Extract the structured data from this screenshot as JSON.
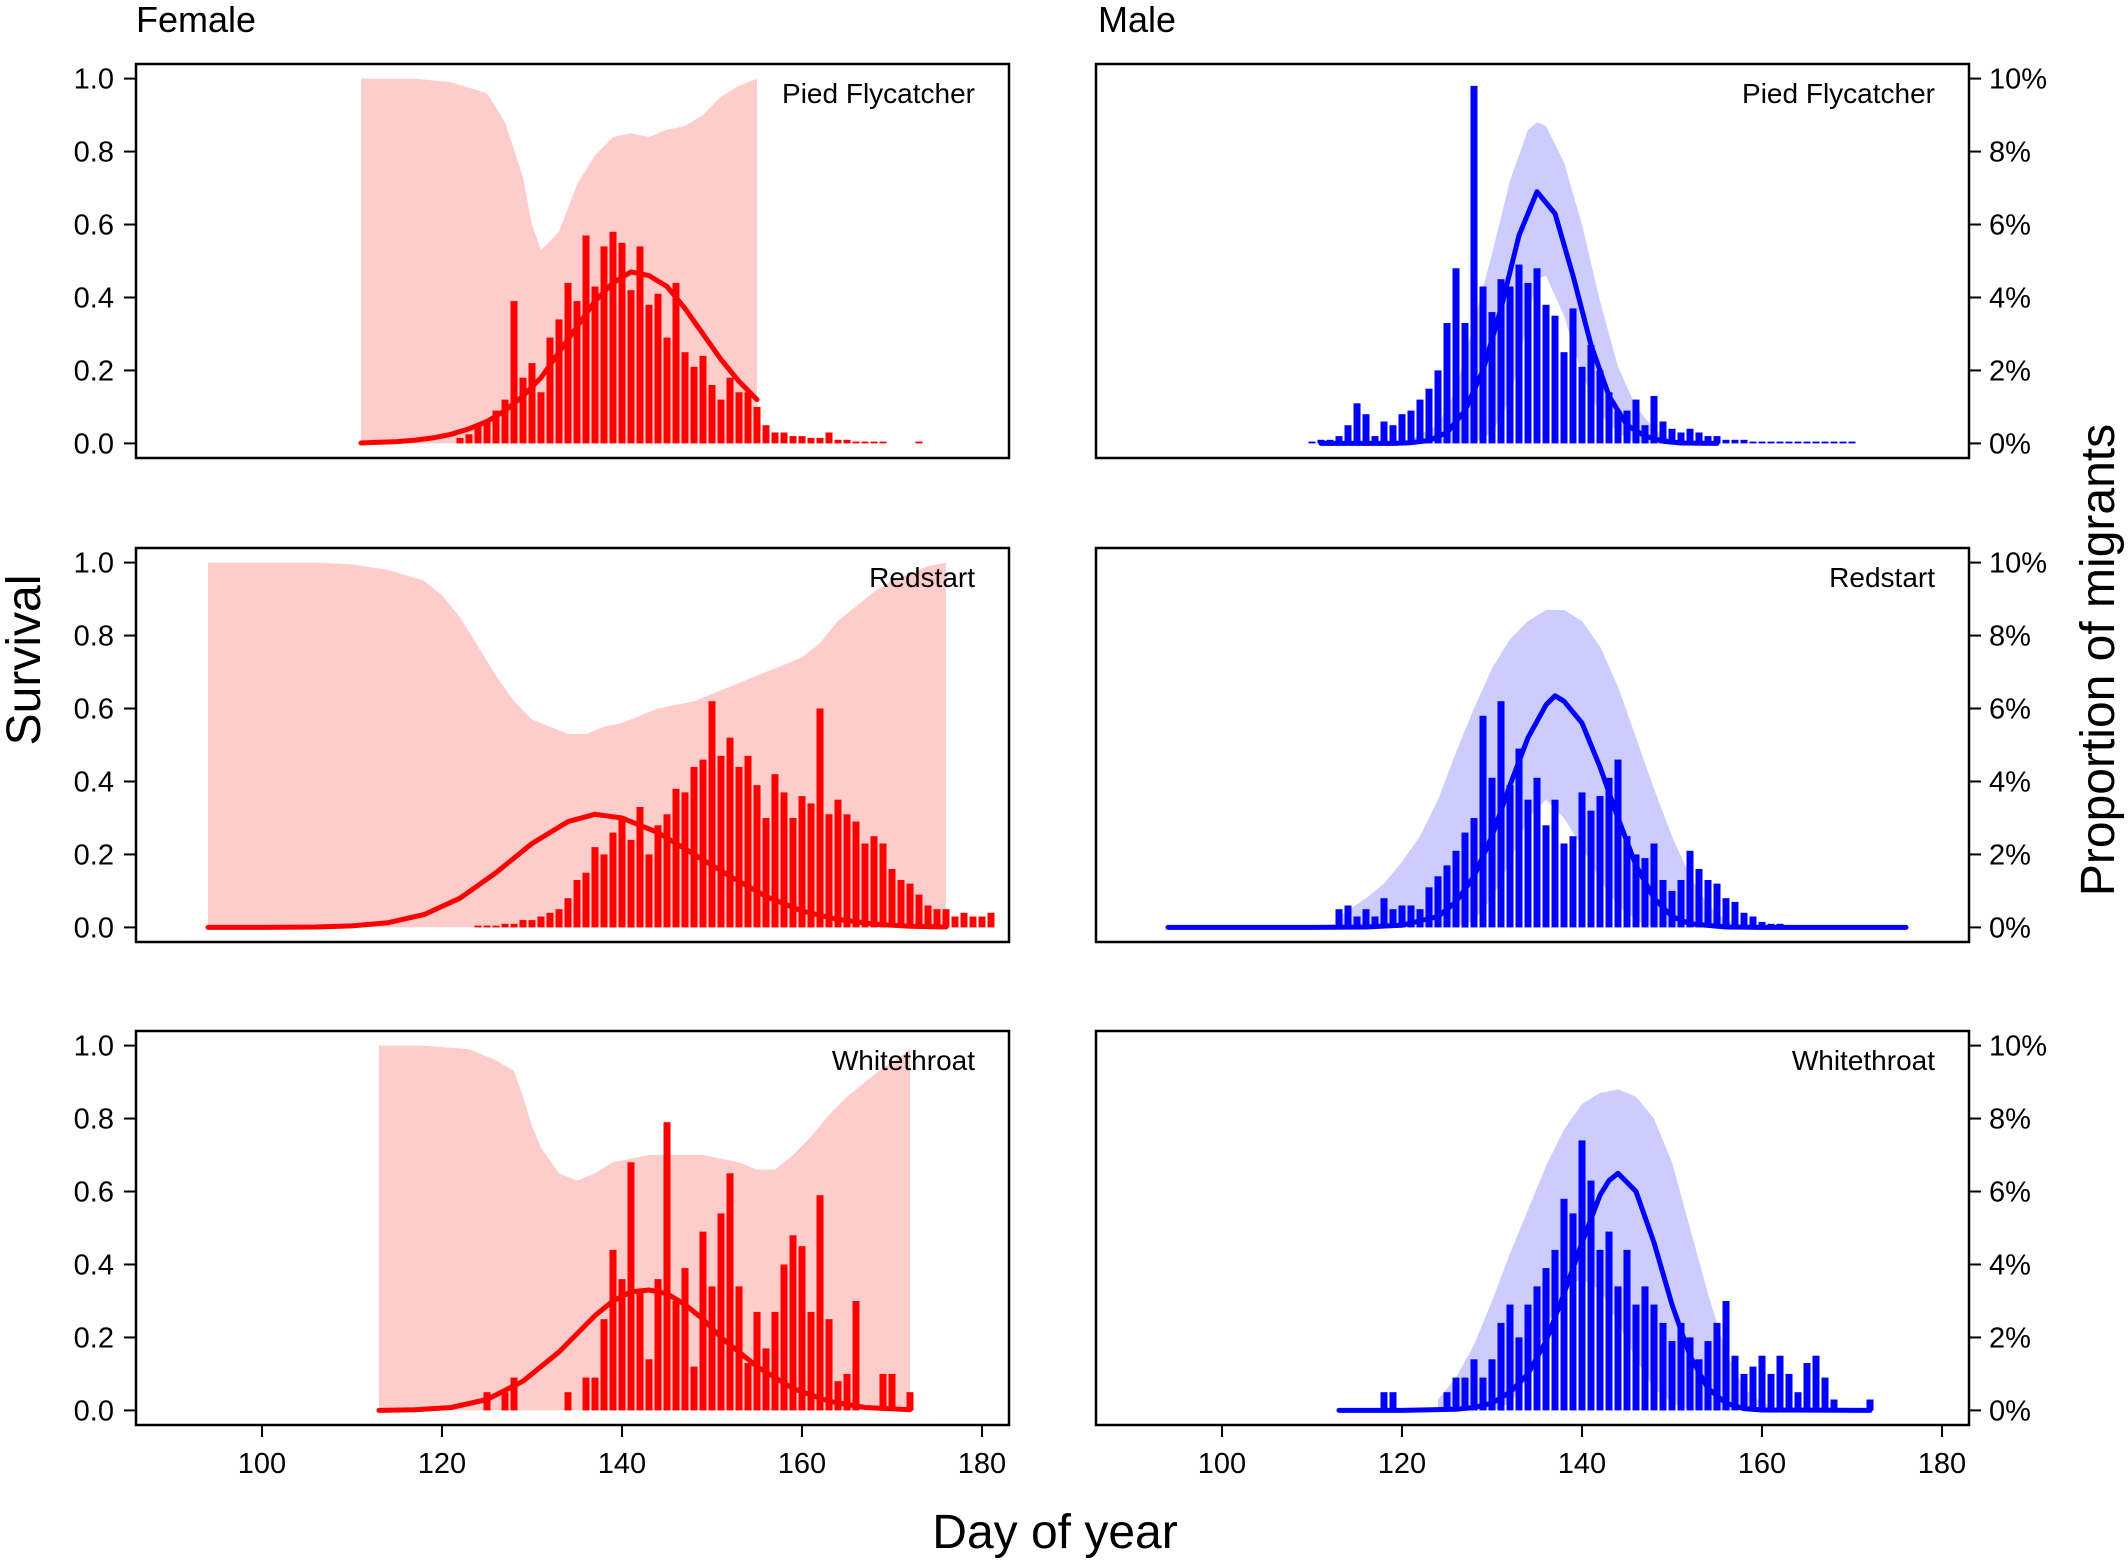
{
  "column_titles": {
    "female": "Female",
    "male": "Male"
  },
  "axis_titles": {
    "left": "Survival",
    "right": "Proportion of migrants",
    "bottom": "Day of year"
  },
  "left_ticks": [
    "0.0",
    "0.2",
    "0.4",
    "0.6",
    "0.8",
    "1.0"
  ],
  "right_ticks": [
    "0%",
    "2%",
    "4%",
    "6%",
    "8%",
    "10%"
  ],
  "x_ticks": [
    "100",
    "120",
    "140",
    "160",
    "180"
  ],
  "colors": {
    "female_line": "#ff0000",
    "female_bar": "#ff0000",
    "female_band": "#ffcccc",
    "male_line": "#0000ff",
    "male_bar": "#0000ff",
    "male_band": "#ccccff"
  },
  "chart_data": [
    {
      "type": "bar",
      "sex": "Female",
      "species": "Pied Flycatcher",
      "xlim": [
        86,
        183
      ],
      "ylim": [
        -0.04,
        1.04
      ],
      "y2lim": [
        -0.4,
        10.4
      ],
      "y2_unit": "%",
      "bars": {
        "start": 112,
        "values": [
          0,
          0,
          0,
          0,
          0,
          0,
          0,
          0,
          0,
          0,
          0.15,
          0.25,
          0.5,
          0.6,
          0.9,
          1.2,
          3.9,
          1.8,
          2.2,
          1.4,
          2.9,
          3.4,
          4.4,
          3.9,
          5.7,
          4.3,
          5.4,
          5.8,
          5.5,
          4.2,
          5.4,
          3.8,
          4.1,
          2.9,
          4.4,
          2.5,
          2.1,
          2.4,
          1.6,
          1.2,
          1.8,
          1.4,
          1.4,
          1.0,
          0.5,
          0.3,
          0.3,
          0.2,
          0.2,
          0.15,
          0.15,
          0.3,
          0.1,
          0.1,
          0.05,
          0.05,
          0.05,
          0.05,
          0,
          0,
          0,
          0.05
        ]
      },
      "fitted_curve": {
        "x": [
          111,
          113,
          115,
          117,
          119,
          121,
          123,
          125,
          127,
          129,
          131,
          133,
          135,
          137,
          139,
          141,
          143,
          145,
          147,
          149,
          151,
          153,
          155
        ],
        "y": [
          0.001,
          0.003,
          0.005,
          0.009,
          0.015,
          0.025,
          0.04,
          0.06,
          0.09,
          0.13,
          0.18,
          0.25,
          0.32,
          0.39,
          0.44,
          0.47,
          0.46,
          0.43,
          0.37,
          0.3,
          0.23,
          0.17,
          0.12
        ]
      },
      "band": {
        "x": [
          111,
          117,
          121,
          125,
          127,
          129,
          130,
          131,
          133,
          135,
          137,
          139,
          141,
          143,
          145,
          147,
          149,
          151,
          153,
          155
        ],
        "upper": [
          1.0,
          1.0,
          0.99,
          0.96,
          0.88,
          0.73,
          0.6,
          0.53,
          0.58,
          0.71,
          0.79,
          0.84,
          0.85,
          0.84,
          0.86,
          0.87,
          0.9,
          0.95,
          0.98,
          1.0
        ],
        "lower": [
          0,
          0,
          0,
          0,
          0,
          0,
          0,
          0,
          0,
          0,
          0,
          0,
          0,
          0,
          0,
          0,
          0,
          0,
          0,
          0
        ]
      }
    },
    {
      "type": "bar",
      "sex": "Male",
      "species": "Pied Flycatcher",
      "xlim": [
        86,
        183
      ],
      "ylim": [
        -0.04,
        1.04
      ],
      "y2lim": [
        -0.4,
        10.4
      ],
      "y2_unit": "%",
      "bars": {
        "start": 110,
        "values": [
          0.05,
          0.1,
          0.1,
          0.2,
          0.5,
          1.1,
          0.8,
          0.2,
          0.6,
          0.5,
          0.8,
          0.9,
          1.2,
          1.5,
          2.0,
          3.3,
          4.8,
          3.3,
          9.8,
          4.3,
          3.6,
          4.5,
          4.3,
          4.9,
          4.4,
          4.8,
          3.8,
          3.5,
          2.5,
          3.7,
          2.1,
          2.7,
          2.0,
          1.4,
          0.9,
          0.9,
          1.2,
          0.5,
          1.3,
          0.6,
          0.4,
          0.3,
          0.4,
          0.3,
          0.2,
          0.2,
          0.1,
          0.1,
          0.1,
          0.05,
          0.05,
          0.05,
          0.05,
          0.05,
          0.05,
          0.05,
          0.05,
          0.05,
          0.05,
          0.05,
          0.05
        ]
      },
      "fitted_curve": {
        "x": [
          111,
          115,
          119,
          121,
          123,
          125,
          127,
          129,
          131,
          133,
          135,
          137,
          139,
          141,
          143,
          145,
          147,
          149,
          151,
          155
        ],
        "y": [
          0,
          0,
          0,
          0.002,
          0.008,
          0.03,
          0.09,
          0.2,
          0.37,
          0.57,
          0.69,
          0.63,
          0.46,
          0.27,
          0.13,
          0.05,
          0.02,
          0.006,
          0.001,
          0
        ]
      },
      "band": {
        "x": [
          120,
          124,
          126,
          128,
          130,
          132,
          134,
          135,
          136,
          138,
          140,
          142,
          144,
          146,
          148,
          150,
          152
        ],
        "upper": [
          0,
          0.05,
          0.15,
          0.33,
          0.52,
          0.72,
          0.86,
          0.88,
          0.87,
          0.77,
          0.6,
          0.39,
          0.21,
          0.1,
          0.04,
          0.01,
          0
        ],
        "lower": [
          0,
          0,
          0,
          0,
          0.03,
          0.12,
          0.34,
          0.45,
          0.46,
          0.35,
          0.19,
          0.08,
          0.03,
          0,
          0,
          0,
          0
        ]
      }
    },
    {
      "type": "bar",
      "sex": "Female",
      "species": "Redstart",
      "xlim": [
        86,
        183
      ],
      "ylim": [
        -0.04,
        1.04
      ],
      "y2lim": [
        -0.4,
        10.4
      ],
      "y2_unit": "%",
      "bars": {
        "start": 114,
        "values": [
          0,
          0,
          0,
          0,
          0,
          0,
          0,
          0,
          0,
          0,
          0.05,
          0.05,
          0.05,
          0.1,
          0.1,
          0.2,
          0.2,
          0.3,
          0.4,
          0.5,
          0.8,
          1.3,
          1.5,
          2.2,
          2.0,
          2.6,
          3.0,
          2.4,
          3.3,
          2.0,
          2.8,
          3.1,
          3.8,
          3.7,
          4.4,
          4.6,
          6.2,
          4.7,
          5.2,
          4.4,
          4.7,
          3.9,
          3.0,
          4.2,
          3.7,
          3.0,
          3.6,
          3.4,
          6.0,
          3.1,
          3.5,
          3.1,
          2.9,
          2.3,
          2.5,
          2.3,
          1.6,
          1.3,
          1.2,
          0.9,
          0.6,
          0.5,
          0.5,
          0.3,
          0.4,
          0.3,
          0.3,
          0.4
        ]
      },
      "fitted_curve": {
        "x": [
          94,
          100,
          106,
          110,
          114,
          118,
          122,
          126,
          130,
          134,
          137,
          140,
          144,
          148,
          152,
          156,
          160,
          164,
          168,
          172,
          176
        ],
        "y": [
          0,
          0,
          0.001,
          0.004,
          0.013,
          0.035,
          0.08,
          0.15,
          0.23,
          0.29,
          0.31,
          0.3,
          0.26,
          0.2,
          0.14,
          0.085,
          0.045,
          0.022,
          0.009,
          0.003,
          0.001
        ]
      },
      "band": {
        "x": [
          94,
          100,
          106,
          110,
          114,
          118,
          120,
          122,
          124,
          126,
          128,
          130,
          132,
          134,
          136,
          138,
          140,
          142,
          144,
          146,
          148,
          150,
          152,
          154,
          156,
          158,
          160,
          162,
          164,
          166,
          168,
          170,
          172,
          174,
          176
        ],
        "upper": [
          1.0,
          1.0,
          1.0,
          0.995,
          0.98,
          0.95,
          0.91,
          0.85,
          0.77,
          0.69,
          0.62,
          0.57,
          0.55,
          0.53,
          0.53,
          0.55,
          0.56,
          0.58,
          0.6,
          0.61,
          0.62,
          0.64,
          0.66,
          0.68,
          0.7,
          0.72,
          0.74,
          0.78,
          0.84,
          0.88,
          0.92,
          0.95,
          0.97,
          0.99,
          1.0
        ],
        "lower": [
          0,
          0,
          0,
          0,
          0,
          0,
          0,
          0,
          0,
          0,
          0,
          0,
          0,
          0,
          0,
          0,
          0,
          0,
          0,
          0,
          0,
          0,
          0,
          0,
          0,
          0,
          0,
          0,
          0,
          0,
          0,
          0,
          0,
          0,
          0
        ]
      }
    },
    {
      "type": "bar",
      "sex": "Male",
      "species": "Redstart",
      "xlim": [
        86,
        183
      ],
      "ylim": [
        -0.04,
        1.04
      ],
      "y2lim": [
        -0.4,
        10.4
      ],
      "y2_unit": "%",
      "bars": {
        "start": 113,
        "values": [
          0.5,
          0.6,
          0.3,
          0.5,
          0.3,
          0.8,
          0.5,
          0.6,
          0.6,
          0.5,
          1.1,
          1.4,
          1.7,
          2.1,
          2.6,
          3.0,
          5.8,
          4.1,
          6.2,
          3.9,
          4.9,
          3.5,
          4.1,
          2.8,
          3.5,
          2.3,
          2.5,
          3.7,
          3.2,
          3.6,
          4.1,
          4.6,
          2.5,
          2.0,
          1.9,
          2.3,
          1.3,
          1.0,
          1.3,
          2.1,
          1.6,
          1.3,
          1.2,
          0.8,
          0.7,
          0.4,
          0.3,
          0.15,
          0.1,
          0.1,
          0.05,
          0.05,
          0.05,
          0.05,
          0.05,
          0.05
        ]
      },
      "fitted_curve": {
        "x": [
          94,
          110,
          116,
          120,
          124,
          126,
          128,
          130,
          132,
          134,
          136,
          137,
          138,
          140,
          142,
          144,
          146,
          148,
          150,
          152,
          156,
          160,
          176
        ],
        "y": [
          0,
          0,
          0.001,
          0.006,
          0.03,
          0.07,
          0.14,
          0.25,
          0.39,
          0.52,
          0.61,
          0.635,
          0.62,
          0.56,
          0.44,
          0.3,
          0.17,
          0.08,
          0.03,
          0.01,
          0.001,
          0,
          0
        ]
      },
      "band": {
        "x": [
          113,
          116,
          118,
          120,
          122,
          124,
          126,
          128,
          130,
          132,
          134,
          136,
          138,
          140,
          142,
          144,
          146,
          148,
          150,
          152,
          154,
          156,
          158,
          160
        ],
        "upper": [
          0.03,
          0.08,
          0.12,
          0.18,
          0.25,
          0.35,
          0.48,
          0.6,
          0.71,
          0.79,
          0.84,
          0.87,
          0.87,
          0.84,
          0.77,
          0.66,
          0.52,
          0.38,
          0.25,
          0.14,
          0.06,
          0.02,
          0.005,
          0
        ],
        "lower": [
          0,
          0,
          0,
          0,
          0,
          0,
          0,
          0.02,
          0.08,
          0.18,
          0.3,
          0.35,
          0.3,
          0.22,
          0.13,
          0.06,
          0.02,
          0,
          0,
          0,
          0,
          0,
          0,
          0
        ]
      }
    },
    {
      "type": "bar",
      "sex": "Female",
      "species": "Whitethroat",
      "xlim": [
        86,
        183
      ],
      "ylim": [
        -0.04,
        1.04
      ],
      "y2lim": [
        -0.4,
        10.4
      ],
      "y2_unit": "%",
      "bars": {
        "start": 113,
        "values": [
          0,
          0,
          0,
          0,
          0,
          0,
          0,
          0,
          0,
          0,
          0,
          0,
          0.5,
          0,
          0.5,
          0.9,
          0,
          0,
          0,
          0,
          0,
          0.5,
          0,
          0.9,
          0.9,
          2.5,
          4.4,
          3.6,
          6.8,
          3.3,
          1.4,
          3.6,
          7.9,
          3.0,
          3.9,
          1.2,
          4.9,
          3.4,
          5.4,
          6.5,
          3.4,
          1.3,
          2.7,
          1.7,
          2.7,
          4.0,
          4.8,
          4.5,
          2.7,
          5.9,
          2.5,
          0.8,
          1.0,
          3.0,
          0,
          0,
          1.0,
          1.0,
          0,
          0.5
        ]
      },
      "fitted_curve": {
        "x": [
          113,
          117,
          121,
          125,
          129,
          133,
          135,
          137,
          139,
          141,
          143,
          145,
          147,
          149,
          151,
          155,
          159,
          163,
          167,
          172
        ],
        "y": [
          0,
          0.002,
          0.008,
          0.03,
          0.08,
          0.16,
          0.21,
          0.26,
          0.3,
          0.325,
          0.33,
          0.32,
          0.29,
          0.25,
          0.2,
          0.12,
          0.06,
          0.025,
          0.008,
          0.002
        ]
      },
      "band": {
        "x": [
          113,
          118,
          123,
          126,
          128,
          129,
          130,
          131,
          133,
          135,
          137,
          139,
          141,
          143,
          145,
          147,
          149,
          151,
          153,
          155,
          157,
          159,
          161,
          163,
          165,
          167,
          169,
          171,
          172
        ],
        "upper": [
          1.0,
          1.0,
          0.99,
          0.96,
          0.93,
          0.86,
          0.78,
          0.72,
          0.65,
          0.63,
          0.65,
          0.68,
          0.69,
          0.7,
          0.7,
          0.7,
          0.7,
          0.69,
          0.68,
          0.66,
          0.66,
          0.7,
          0.75,
          0.81,
          0.86,
          0.9,
          0.94,
          0.97,
          0.99
        ],
        "lower": [
          0,
          0,
          0,
          0,
          0,
          0,
          0,
          0,
          0,
          0,
          0,
          0,
          0,
          0,
          0,
          0,
          0,
          0,
          0,
          0,
          0,
          0,
          0,
          0,
          0,
          0,
          0,
          0,
          0
        ]
      }
    },
    {
      "type": "bar",
      "sex": "Male",
      "species": "Whitethroat",
      "xlim": [
        86,
        183
      ],
      "ylim": [
        -0.04,
        1.04
      ],
      "y2lim": [
        -0.4,
        10.4
      ],
      "y2_unit": "%",
      "bars": {
        "start": 113,
        "values": [
          0,
          0,
          0,
          0,
          0,
          0.5,
          0.5,
          0,
          0,
          0,
          0,
          0,
          0.5,
          0.9,
          0.9,
          1.4,
          0.9,
          1.4,
          2.4,
          2.9,
          2.0,
          2.9,
          3.4,
          3.9,
          4.4,
          5.8,
          5.4,
          7.4,
          6.3,
          4.4,
          4.9,
          3.4,
          4.4,
          2.9,
          3.4,
          2.9,
          2.4,
          1.9,
          2.4,
          2.0,
          1.4,
          1.9,
          2.4,
          3.0,
          1.5,
          1.0,
          1.2,
          1.5,
          1.0,
          1.5,
          1.0,
          0.5,
          1.3,
          1.5,
          0.9,
          0.3,
          0,
          0,
          0,
          0.3
        ]
      },
      "fitted_curve": {
        "x": [
          113,
          120,
          126,
          128,
          130,
          132,
          134,
          136,
          138,
          140,
          142,
          143,
          144,
          146,
          148,
          150,
          152,
          154,
          156,
          158,
          160,
          172
        ],
        "y": [
          0,
          0,
          0.003,
          0.008,
          0.02,
          0.05,
          0.1,
          0.19,
          0.32,
          0.46,
          0.59,
          0.63,
          0.65,
          0.6,
          0.46,
          0.29,
          0.15,
          0.06,
          0.02,
          0.005,
          0.001,
          0
        ]
      },
      "band": {
        "x": [
          124,
          126,
          128,
          130,
          132,
          134,
          136,
          138,
          140,
          142,
          144,
          146,
          148,
          150,
          152,
          154,
          156,
          158,
          160,
          162
        ],
        "upper": [
          0.03,
          0.09,
          0.18,
          0.3,
          0.43,
          0.55,
          0.67,
          0.77,
          0.84,
          0.87,
          0.88,
          0.86,
          0.8,
          0.68,
          0.5,
          0.32,
          0.16,
          0.06,
          0.02,
          0.005
        ],
        "lower": [
          0,
          0,
          0,
          0,
          0.02,
          0.09,
          0.22,
          0.34,
          0.36,
          0.33,
          0.24,
          0.14,
          0.06,
          0.02,
          0,
          0,
          0,
          0,
          0,
          0
        ]
      }
    }
  ]
}
